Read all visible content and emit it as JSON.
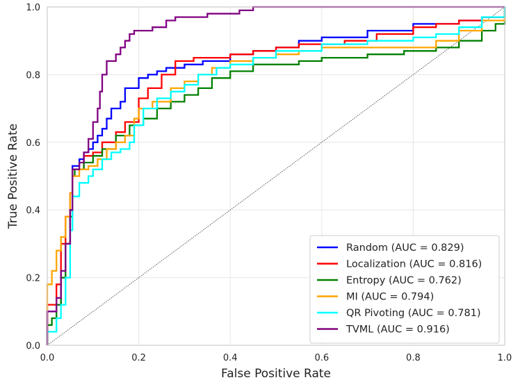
{
  "chart_data": {
    "type": "line",
    "title": "",
    "xlabel": "False Positive Rate",
    "ylabel": "True Positive Rate",
    "xlim": [
      0,
      1
    ],
    "ylim": [
      0,
      1
    ],
    "x_ticks": [
      "0.0",
      "0.2",
      "0.4",
      "0.6",
      "0.8",
      "1.0"
    ],
    "y_ticks": [
      "0.0",
      "0.2",
      "0.4",
      "0.6",
      "0.8",
      "1.0"
    ],
    "grid": true,
    "legend_position": "lower-right",
    "reference_line": {
      "from": [
        0,
        0
      ],
      "to": [
        1,
        1
      ],
      "style": "dotted",
      "color": "#333333"
    },
    "series": [
      {
        "name": "Random (AUC = 0.829)",
        "color": "#0000ff",
        "points": [
          [
            0,
            0
          ],
          [
            0,
            0.1
          ],
          [
            0.02,
            0.12
          ],
          [
            0.03,
            0.2
          ],
          [
            0.04,
            0.3
          ],
          [
            0.05,
            0.4
          ],
          [
            0.055,
            0.53
          ],
          [
            0.07,
            0.55
          ],
          [
            0.08,
            0.57
          ],
          [
            0.09,
            0.58
          ],
          [
            0.1,
            0.6
          ],
          [
            0.11,
            0.62
          ],
          [
            0.12,
            0.64
          ],
          [
            0.13,
            0.67
          ],
          [
            0.14,
            0.7
          ],
          [
            0.15,
            0.7
          ],
          [
            0.16,
            0.72
          ],
          [
            0.17,
            0.76
          ],
          [
            0.2,
            0.79
          ],
          [
            0.22,
            0.8
          ],
          [
            0.24,
            0.81
          ],
          [
            0.26,
            0.82
          ],
          [
            0.3,
            0.83
          ],
          [
            0.34,
            0.84
          ],
          [
            0.4,
            0.86
          ],
          [
            0.45,
            0.87
          ],
          [
            0.5,
            0.88
          ],
          [
            0.55,
            0.9
          ],
          [
            0.6,
            0.91
          ],
          [
            0.7,
            0.93
          ],
          [
            0.8,
            0.95
          ],
          [
            0.9,
            0.96
          ],
          [
            0.95,
            0.97
          ],
          [
            1,
            1
          ]
        ]
      },
      {
        "name": "Localization (AUC = 0.816)",
        "color": "#ff0000",
        "points": [
          [
            0,
            0
          ],
          [
            0,
            0.12
          ],
          [
            0.02,
            0.18
          ],
          [
            0.03,
            0.3
          ],
          [
            0.04,
            0.38
          ],
          [
            0.05,
            0.45
          ],
          [
            0.055,
            0.52
          ],
          [
            0.08,
            0.56
          ],
          [
            0.1,
            0.57
          ],
          [
            0.12,
            0.6
          ],
          [
            0.15,
            0.63
          ],
          [
            0.17,
            0.66
          ],
          [
            0.2,
            0.73
          ],
          [
            0.22,
            0.76
          ],
          [
            0.25,
            0.8
          ],
          [
            0.28,
            0.84
          ],
          [
            0.32,
            0.85
          ],
          [
            0.4,
            0.86
          ],
          [
            0.45,
            0.87
          ],
          [
            0.5,
            0.88
          ],
          [
            0.55,
            0.89
          ],
          [
            0.65,
            0.9
          ],
          [
            0.72,
            0.92
          ],
          [
            0.8,
            0.94
          ],
          [
            0.85,
            0.95
          ],
          [
            0.9,
            0.96
          ],
          [
            0.95,
            0.97
          ],
          [
            1,
            1
          ]
        ]
      },
      {
        "name": "Entropy (AUC = 0.762)",
        "color": "#008000",
        "points": [
          [
            0,
            0
          ],
          [
            0,
            0.06
          ],
          [
            0.01,
            0.08
          ],
          [
            0.02,
            0.12
          ],
          [
            0.03,
            0.2
          ],
          [
            0.04,
            0.3
          ],
          [
            0.05,
            0.38
          ],
          [
            0.055,
            0.5
          ],
          [
            0.06,
            0.52
          ],
          [
            0.08,
            0.54
          ],
          [
            0.1,
            0.56
          ],
          [
            0.12,
            0.58
          ],
          [
            0.15,
            0.62
          ],
          [
            0.18,
            0.65
          ],
          [
            0.21,
            0.67
          ],
          [
            0.24,
            0.7
          ],
          [
            0.27,
            0.72
          ],
          [
            0.3,
            0.74
          ],
          [
            0.33,
            0.76
          ],
          [
            0.36,
            0.79
          ],
          [
            0.4,
            0.81
          ],
          [
            0.45,
            0.83
          ],
          [
            0.55,
            0.84
          ],
          [
            0.6,
            0.85
          ],
          [
            0.7,
            0.86
          ],
          [
            0.78,
            0.87
          ],
          [
            0.85,
            0.88
          ],
          [
            0.9,
            0.9
          ],
          [
            0.95,
            0.93
          ],
          [
            0.98,
            0.95
          ],
          [
            1,
            0.97
          ]
        ]
      },
      {
        "name": "MI (AUC = 0.794)",
        "color": "#ffa500",
        "points": [
          [
            0,
            0
          ],
          [
            0,
            0.18
          ],
          [
            0.01,
            0.22
          ],
          [
            0.02,
            0.28
          ],
          [
            0.03,
            0.32
          ],
          [
            0.04,
            0.38
          ],
          [
            0.05,
            0.45
          ],
          [
            0.055,
            0.5
          ],
          [
            0.07,
            0.52
          ],
          [
            0.09,
            0.53
          ],
          [
            0.11,
            0.55
          ],
          [
            0.13,
            0.58
          ],
          [
            0.15,
            0.6
          ],
          [
            0.17,
            0.62
          ],
          [
            0.19,
            0.67
          ],
          [
            0.2,
            0.7
          ],
          [
            0.23,
            0.72
          ],
          [
            0.27,
            0.76
          ],
          [
            0.3,
            0.78
          ],
          [
            0.33,
            0.8
          ],
          [
            0.36,
            0.82
          ],
          [
            0.4,
            0.84
          ],
          [
            0.45,
            0.85
          ],
          [
            0.5,
            0.86
          ],
          [
            0.55,
            0.87
          ],
          [
            0.6,
            0.88
          ],
          [
            0.7,
            0.88
          ],
          [
            0.8,
            0.88
          ],
          [
            0.85,
            0.9
          ],
          [
            0.9,
            0.93
          ],
          [
            0.95,
            0.96
          ],
          [
            1,
            1
          ]
        ]
      },
      {
        "name": "QR Pivoting (AUC = 0.781)",
        "color": "#00ffff",
        "points": [
          [
            0,
            0
          ],
          [
            0,
            0.04
          ],
          [
            0.02,
            0.08
          ],
          [
            0.03,
            0.12
          ],
          [
            0.04,
            0.2
          ],
          [
            0.05,
            0.34
          ],
          [
            0.055,
            0.44
          ],
          [
            0.07,
            0.48
          ],
          [
            0.09,
            0.5
          ],
          [
            0.1,
            0.52
          ],
          [
            0.12,
            0.55
          ],
          [
            0.14,
            0.57
          ],
          [
            0.16,
            0.58
          ],
          [
            0.18,
            0.6
          ],
          [
            0.19,
            0.65
          ],
          [
            0.21,
            0.7
          ],
          [
            0.24,
            0.73
          ],
          [
            0.27,
            0.75
          ],
          [
            0.3,
            0.77
          ],
          [
            0.33,
            0.8
          ],
          [
            0.37,
            0.82
          ],
          [
            0.4,
            0.83
          ],
          [
            0.45,
            0.85
          ],
          [
            0.5,
            0.87
          ],
          [
            0.6,
            0.89
          ],
          [
            0.7,
            0.9
          ],
          [
            0.8,
            0.91
          ],
          [
            0.85,
            0.92
          ],
          [
            0.9,
            0.94
          ],
          [
            0.95,
            0.97
          ],
          [
            1,
            1
          ]
        ]
      },
      {
        "name": "TVML (AUC = 0.916)",
        "color": "#800080",
        "points": [
          [
            0,
            0
          ],
          [
            0,
            0.1
          ],
          [
            0.02,
            0.14
          ],
          [
            0.03,
            0.22
          ],
          [
            0.04,
            0.3
          ],
          [
            0.05,
            0.4
          ],
          [
            0.055,
            0.52
          ],
          [
            0.07,
            0.54
          ],
          [
            0.08,
            0.57
          ],
          [
            0.09,
            0.61
          ],
          [
            0.1,
            0.66
          ],
          [
            0.11,
            0.7
          ],
          [
            0.115,
            0.75
          ],
          [
            0.12,
            0.8
          ],
          [
            0.13,
            0.84
          ],
          [
            0.15,
            0.86
          ],
          [
            0.16,
            0.88
          ],
          [
            0.17,
            0.9
          ],
          [
            0.18,
            0.92
          ],
          [
            0.19,
            0.93
          ],
          [
            0.23,
            0.94
          ],
          [
            0.26,
            0.96
          ],
          [
            0.28,
            0.97
          ],
          [
            0.35,
            0.98
          ],
          [
            0.41,
            0.98
          ],
          [
            0.42,
            0.99
          ],
          [
            0.44,
            0.99
          ],
          [
            0.45,
            1.0
          ],
          [
            1,
            1
          ]
        ]
      }
    ]
  }
}
